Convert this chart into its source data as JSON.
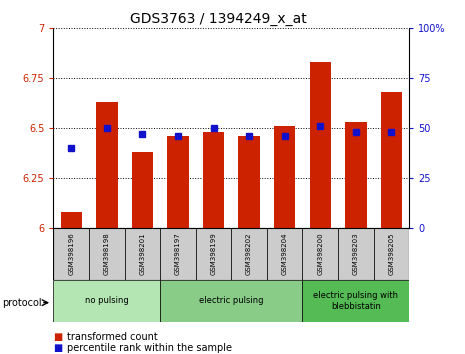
{
  "title": "GDS3763 / 1394249_x_at",
  "samples": [
    "GSM398196",
    "GSM398198",
    "GSM398201",
    "GSM398197",
    "GSM398199",
    "GSM398202",
    "GSM398204",
    "GSM398200",
    "GSM398203",
    "GSM398205"
  ],
  "red_values": [
    6.08,
    6.63,
    6.38,
    6.46,
    6.48,
    6.46,
    6.51,
    6.83,
    6.53,
    6.68
  ],
  "blue_values": [
    40,
    50,
    47,
    46,
    50,
    46,
    46,
    51,
    48,
    48
  ],
  "ylim_left": [
    6.0,
    7.0
  ],
  "ylim_right": [
    0,
    100
  ],
  "yticks_left": [
    6.0,
    6.25,
    6.5,
    6.75,
    7.0
  ],
  "yticks_right": [
    0,
    25,
    50,
    75,
    100
  ],
  "left_tick_labels": [
    "6",
    "6.25",
    "6.5",
    "6.75",
    "7"
  ],
  "right_tick_labels": [
    "0",
    "25",
    "50",
    "75",
    "100%"
  ],
  "groups": [
    {
      "label": "no pulsing",
      "start": 0,
      "end": 2,
      "color": "#b3e6b3"
    },
    {
      "label": "electric pulsing",
      "start": 3,
      "end": 6,
      "color": "#88cc88"
    },
    {
      "label": "electric pulsing with\nblebbistatin",
      "start": 7,
      "end": 9,
      "color": "#55bb55"
    }
  ],
  "bar_color": "#cc2200",
  "blue_color": "#1111cc",
  "left_axis_color": "#cc2200",
  "right_axis_color": "#1111cc",
  "bar_width": 0.6,
  "legend_labels": [
    "transformed count",
    "percentile rank within the sample"
  ]
}
